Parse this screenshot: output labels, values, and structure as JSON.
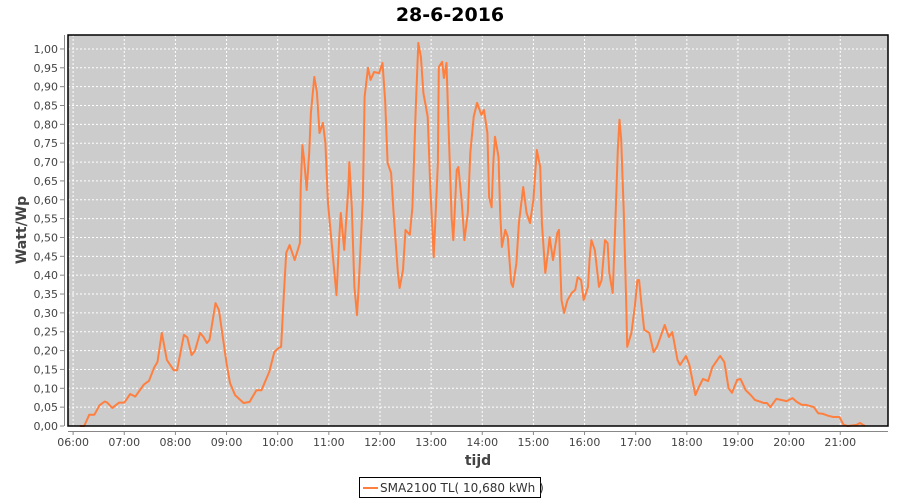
{
  "chart_data": {
    "type": "line",
    "title": "28-6-2016",
    "xlabel": "tijd",
    "ylabel": "Watt/Wp",
    "xlim": [
      "05:54",
      "21:56"
    ],
    "ylim": [
      0,
      1.037
    ],
    "grid": true,
    "legend_placement": "bottom",
    "x_ticks": [
      "06:00",
      "07:00",
      "08:00",
      "09:00",
      "10:00",
      "11:00",
      "12:00",
      "13:00",
      "14:00",
      "15:00",
      "16:00",
      "17:00",
      "18:00",
      "19:00",
      "20:00",
      "21:00"
    ],
    "y_ticks": [
      "0,00",
      "0,05",
      "0,10",
      "0,15",
      "0,20",
      "0,25",
      "0,30",
      "0,35",
      "0,40",
      "0,45",
      "0,50",
      "0,55",
      "0,60",
      "0,65",
      "0,70",
      "0,75",
      "0,80",
      "0,85",
      "0,90",
      "0,95",
      "1,00"
    ],
    "colors": {
      "plot_background": "#cccccc",
      "grid": "#ffffff",
      "series": "#ff7f3f"
    },
    "series": [
      {
        "name": "SMA2100 TL( 10,680 kWh )",
        "points": [
          [
            "06:08",
            0.0
          ],
          [
            "06:13",
            0.0
          ],
          [
            "06:19",
            0.03
          ],
          [
            "06:25",
            0.03
          ],
          [
            "06:31",
            0.055
          ],
          [
            "06:37",
            0.065
          ],
          [
            "06:40",
            0.062
          ],
          [
            "06:46",
            0.048
          ],
          [
            "06:54",
            0.062
          ],
          [
            "07:00",
            0.062
          ],
          [
            "07:07",
            0.085
          ],
          [
            "07:13",
            0.078
          ],
          [
            "07:23",
            0.11
          ],
          [
            "07:29",
            0.12
          ],
          [
            "07:35",
            0.155
          ],
          [
            "07:39",
            0.17
          ],
          [
            "07:44",
            0.247
          ],
          [
            "07:50",
            0.175
          ],
          [
            "07:58",
            0.148
          ],
          [
            "08:02",
            0.148
          ],
          [
            "08:10",
            0.242
          ],
          [
            "08:14",
            0.235
          ],
          [
            "08:19",
            0.188
          ],
          [
            "08:23",
            0.2
          ],
          [
            "08:29",
            0.247
          ],
          [
            "08:33",
            0.236
          ],
          [
            "08:37",
            0.22
          ],
          [
            "08:40",
            0.228
          ],
          [
            "08:47",
            0.326
          ],
          [
            "08:51",
            0.308
          ],
          [
            "08:54",
            0.262
          ],
          [
            "09:00",
            0.167
          ],
          [
            "09:04",
            0.114
          ],
          [
            "09:10",
            0.082
          ],
          [
            "09:20",
            0.061
          ],
          [
            "09:27",
            0.064
          ],
          [
            "09:35",
            0.095
          ],
          [
            "09:41",
            0.095
          ],
          [
            "09:47",
            0.127
          ],
          [
            "09:50",
            0.143
          ],
          [
            "09:56",
            0.196
          ],
          [
            "10:01",
            0.207
          ],
          [
            "10:04",
            0.21
          ],
          [
            "10:07",
            0.342
          ],
          [
            "10:10",
            0.459
          ],
          [
            "10:14",
            0.48
          ],
          [
            "10:20",
            0.44
          ],
          [
            "10:26",
            0.485
          ],
          [
            "10:27",
            0.634
          ],
          [
            "10:29",
            0.745
          ],
          [
            "10:31",
            0.706
          ],
          [
            "10:34",
            0.626
          ],
          [
            "10:37",
            0.724
          ],
          [
            "10:39",
            0.83
          ],
          [
            "10:43",
            0.926
          ],
          [
            "10:46",
            0.886
          ],
          [
            "10:49",
            0.777
          ],
          [
            "10:53",
            0.804
          ],
          [
            "10:56",
            0.75
          ],
          [
            "10:59",
            0.59
          ],
          [
            "11:03",
            0.493
          ],
          [
            "11:09",
            0.347
          ],
          [
            "11:12",
            0.493
          ],
          [
            "11:14",
            0.565
          ],
          [
            "11:18",
            0.467
          ],
          [
            "11:23",
            0.634
          ],
          [
            "11:24",
            0.7
          ],
          [
            "11:27",
            0.58
          ],
          [
            "11:30",
            0.369
          ],
          [
            "11:33",
            0.294
          ],
          [
            "11:35",
            0.369
          ],
          [
            "11:40",
            0.607
          ],
          [
            "11:42",
            0.873
          ],
          [
            "11:46",
            0.95
          ],
          [
            "11:49",
            0.918
          ],
          [
            "11:53",
            0.939
          ],
          [
            "11:59",
            0.936
          ],
          [
            "12:03",
            0.963
          ],
          [
            "12:06",
            0.865
          ],
          [
            "12:09",
            0.698
          ],
          [
            "12:13",
            0.671
          ],
          [
            "12:16",
            0.565
          ],
          [
            "12:21",
            0.406
          ],
          [
            "12:23",
            0.366
          ],
          [
            "12:27",
            0.414
          ],
          [
            "12:30",
            0.52
          ],
          [
            "12:35",
            0.507
          ],
          [
            "12:38",
            0.58
          ],
          [
            "12:42",
            0.846
          ],
          [
            "12:45",
            1.016
          ],
          [
            "12:48",
            0.979
          ],
          [
            "12:51",
            0.883
          ],
          [
            "12:56",
            0.82
          ],
          [
            "12:59",
            0.634
          ],
          [
            "13:03",
            0.448
          ],
          [
            "13:08",
            0.698
          ],
          [
            "13:09",
            0.952
          ],
          [
            "13:13",
            0.966
          ],
          [
            "13:15",
            0.923
          ],
          [
            "13:18",
            0.963
          ],
          [
            "13:20",
            0.82
          ],
          [
            "13:24",
            0.554
          ],
          [
            "13:26",
            0.493
          ],
          [
            "13:30",
            0.679
          ],
          [
            "13:32",
            0.687
          ],
          [
            "13:36",
            0.592
          ],
          [
            "13:39",
            0.493
          ],
          [
            "13:43",
            0.565
          ],
          [
            "13:46",
            0.724
          ],
          [
            "13:50",
            0.82
          ],
          [
            "13:54",
            0.857
          ],
          [
            "13:59",
            0.825
          ],
          [
            "14:02",
            0.838
          ],
          [
            "14:06",
            0.777
          ],
          [
            "14:08",
            0.607
          ],
          [
            "14:11",
            0.58
          ],
          [
            "14:13",
            0.698
          ],
          [
            "14:15",
            0.767
          ],
          [
            "14:19",
            0.714
          ],
          [
            "14:21",
            0.565
          ],
          [
            "14:23",
            0.475
          ],
          [
            "14:27",
            0.52
          ],
          [
            "14:30",
            0.501
          ],
          [
            "14:34",
            0.379
          ],
          [
            "14:36",
            0.369
          ],
          [
            "14:40",
            0.432
          ],
          [
            "14:43",
            0.538
          ],
          [
            "14:48",
            0.634
          ],
          [
            "14:52",
            0.565
          ],
          [
            "14:56",
            0.538
          ],
          [
            "15:00",
            0.6
          ],
          [
            "15:04",
            0.732
          ],
          [
            "15:08",
            0.687
          ],
          [
            "15:10",
            0.538
          ],
          [
            "15:14",
            0.406
          ],
          [
            "15:17",
            0.459
          ],
          [
            "15:19",
            0.501
          ],
          [
            "15:23",
            0.44
          ],
          [
            "15:28",
            0.512
          ],
          [
            "15:30",
            0.52
          ],
          [
            "15:33",
            0.334
          ],
          [
            "15:36",
            0.3
          ],
          [
            "15:40",
            0.334
          ],
          [
            "15:45",
            0.353
          ],
          [
            "15:49",
            0.361
          ],
          [
            "15:52",
            0.395
          ],
          [
            "15:56",
            0.387
          ],
          [
            "15:59",
            0.334
          ],
          [
            "16:04",
            0.369
          ],
          [
            "16:06",
            0.448
          ],
          [
            "16:08",
            0.493
          ],
          [
            "16:12",
            0.467
          ],
          [
            "16:17",
            0.369
          ],
          [
            "16:20",
            0.387
          ],
          [
            "16:24",
            0.493
          ],
          [
            "16:27",
            0.485
          ],
          [
            "16:29",
            0.406
          ],
          [
            "16:33",
            0.353
          ],
          [
            "16:36",
            0.528
          ],
          [
            "16:39",
            0.732
          ],
          [
            "16:41",
            0.812
          ],
          [
            "16:43",
            0.759
          ],
          [
            "16:46",
            0.565
          ],
          [
            "16:49",
            0.316
          ],
          [
            "16:50",
            0.21
          ],
          [
            "16:55",
            0.247
          ],
          [
            "16:59",
            0.316
          ],
          [
            "17:02",
            0.387
          ],
          [
            "17:04",
            0.387
          ],
          [
            "17:07",
            0.316
          ],
          [
            "17:10",
            0.255
          ],
          [
            "17:16",
            0.247
          ],
          [
            "17:21",
            0.196
          ],
          [
            "17:25",
            0.21
          ],
          [
            "17:34",
            0.268
          ],
          [
            "17:39",
            0.236
          ],
          [
            "17:43",
            0.249
          ],
          [
            "17:49",
            0.175
          ],
          [
            "17:52",
            0.162
          ],
          [
            "17:59",
            0.186
          ],
          [
            "18:03",
            0.162
          ],
          [
            "18:10",
            0.082
          ],
          [
            "18:14",
            0.103
          ],
          [
            "18:19",
            0.125
          ],
          [
            "18:25",
            0.119
          ],
          [
            "18:30",
            0.156
          ],
          [
            "18:39",
            0.186
          ],
          [
            "18:44",
            0.17
          ],
          [
            "18:49",
            0.1
          ],
          [
            "18:53",
            0.088
          ],
          [
            "18:59",
            0.122
          ],
          [
            "19:03",
            0.125
          ],
          [
            "19:09",
            0.095
          ],
          [
            "19:15",
            0.082
          ],
          [
            "19:20",
            0.069
          ],
          [
            "19:27",
            0.064
          ],
          [
            "19:30",
            0.061
          ],
          [
            "19:34",
            0.061
          ],
          [
            "19:38",
            0.05
          ],
          [
            "19:45",
            0.072
          ],
          [
            "19:51",
            0.069
          ],
          [
            "19:57",
            0.066
          ],
          [
            "20:04",
            0.074
          ],
          [
            "20:09",
            0.064
          ],
          [
            "20:15",
            0.056
          ],
          [
            "20:20",
            0.056
          ],
          [
            "20:29",
            0.05
          ],
          [
            "20:34",
            0.034
          ],
          [
            "20:40",
            0.032
          ],
          [
            "20:46",
            0.027
          ],
          [
            "20:52",
            0.024
          ],
          [
            "20:59",
            0.024
          ],
          [
            "21:04",
            0.003
          ],
          [
            "21:09",
            0.0
          ],
          [
            "21:19",
            0.003
          ],
          [
            "21:23",
            0.008
          ],
          [
            "21:29",
            0.0
          ]
        ]
      }
    ]
  }
}
